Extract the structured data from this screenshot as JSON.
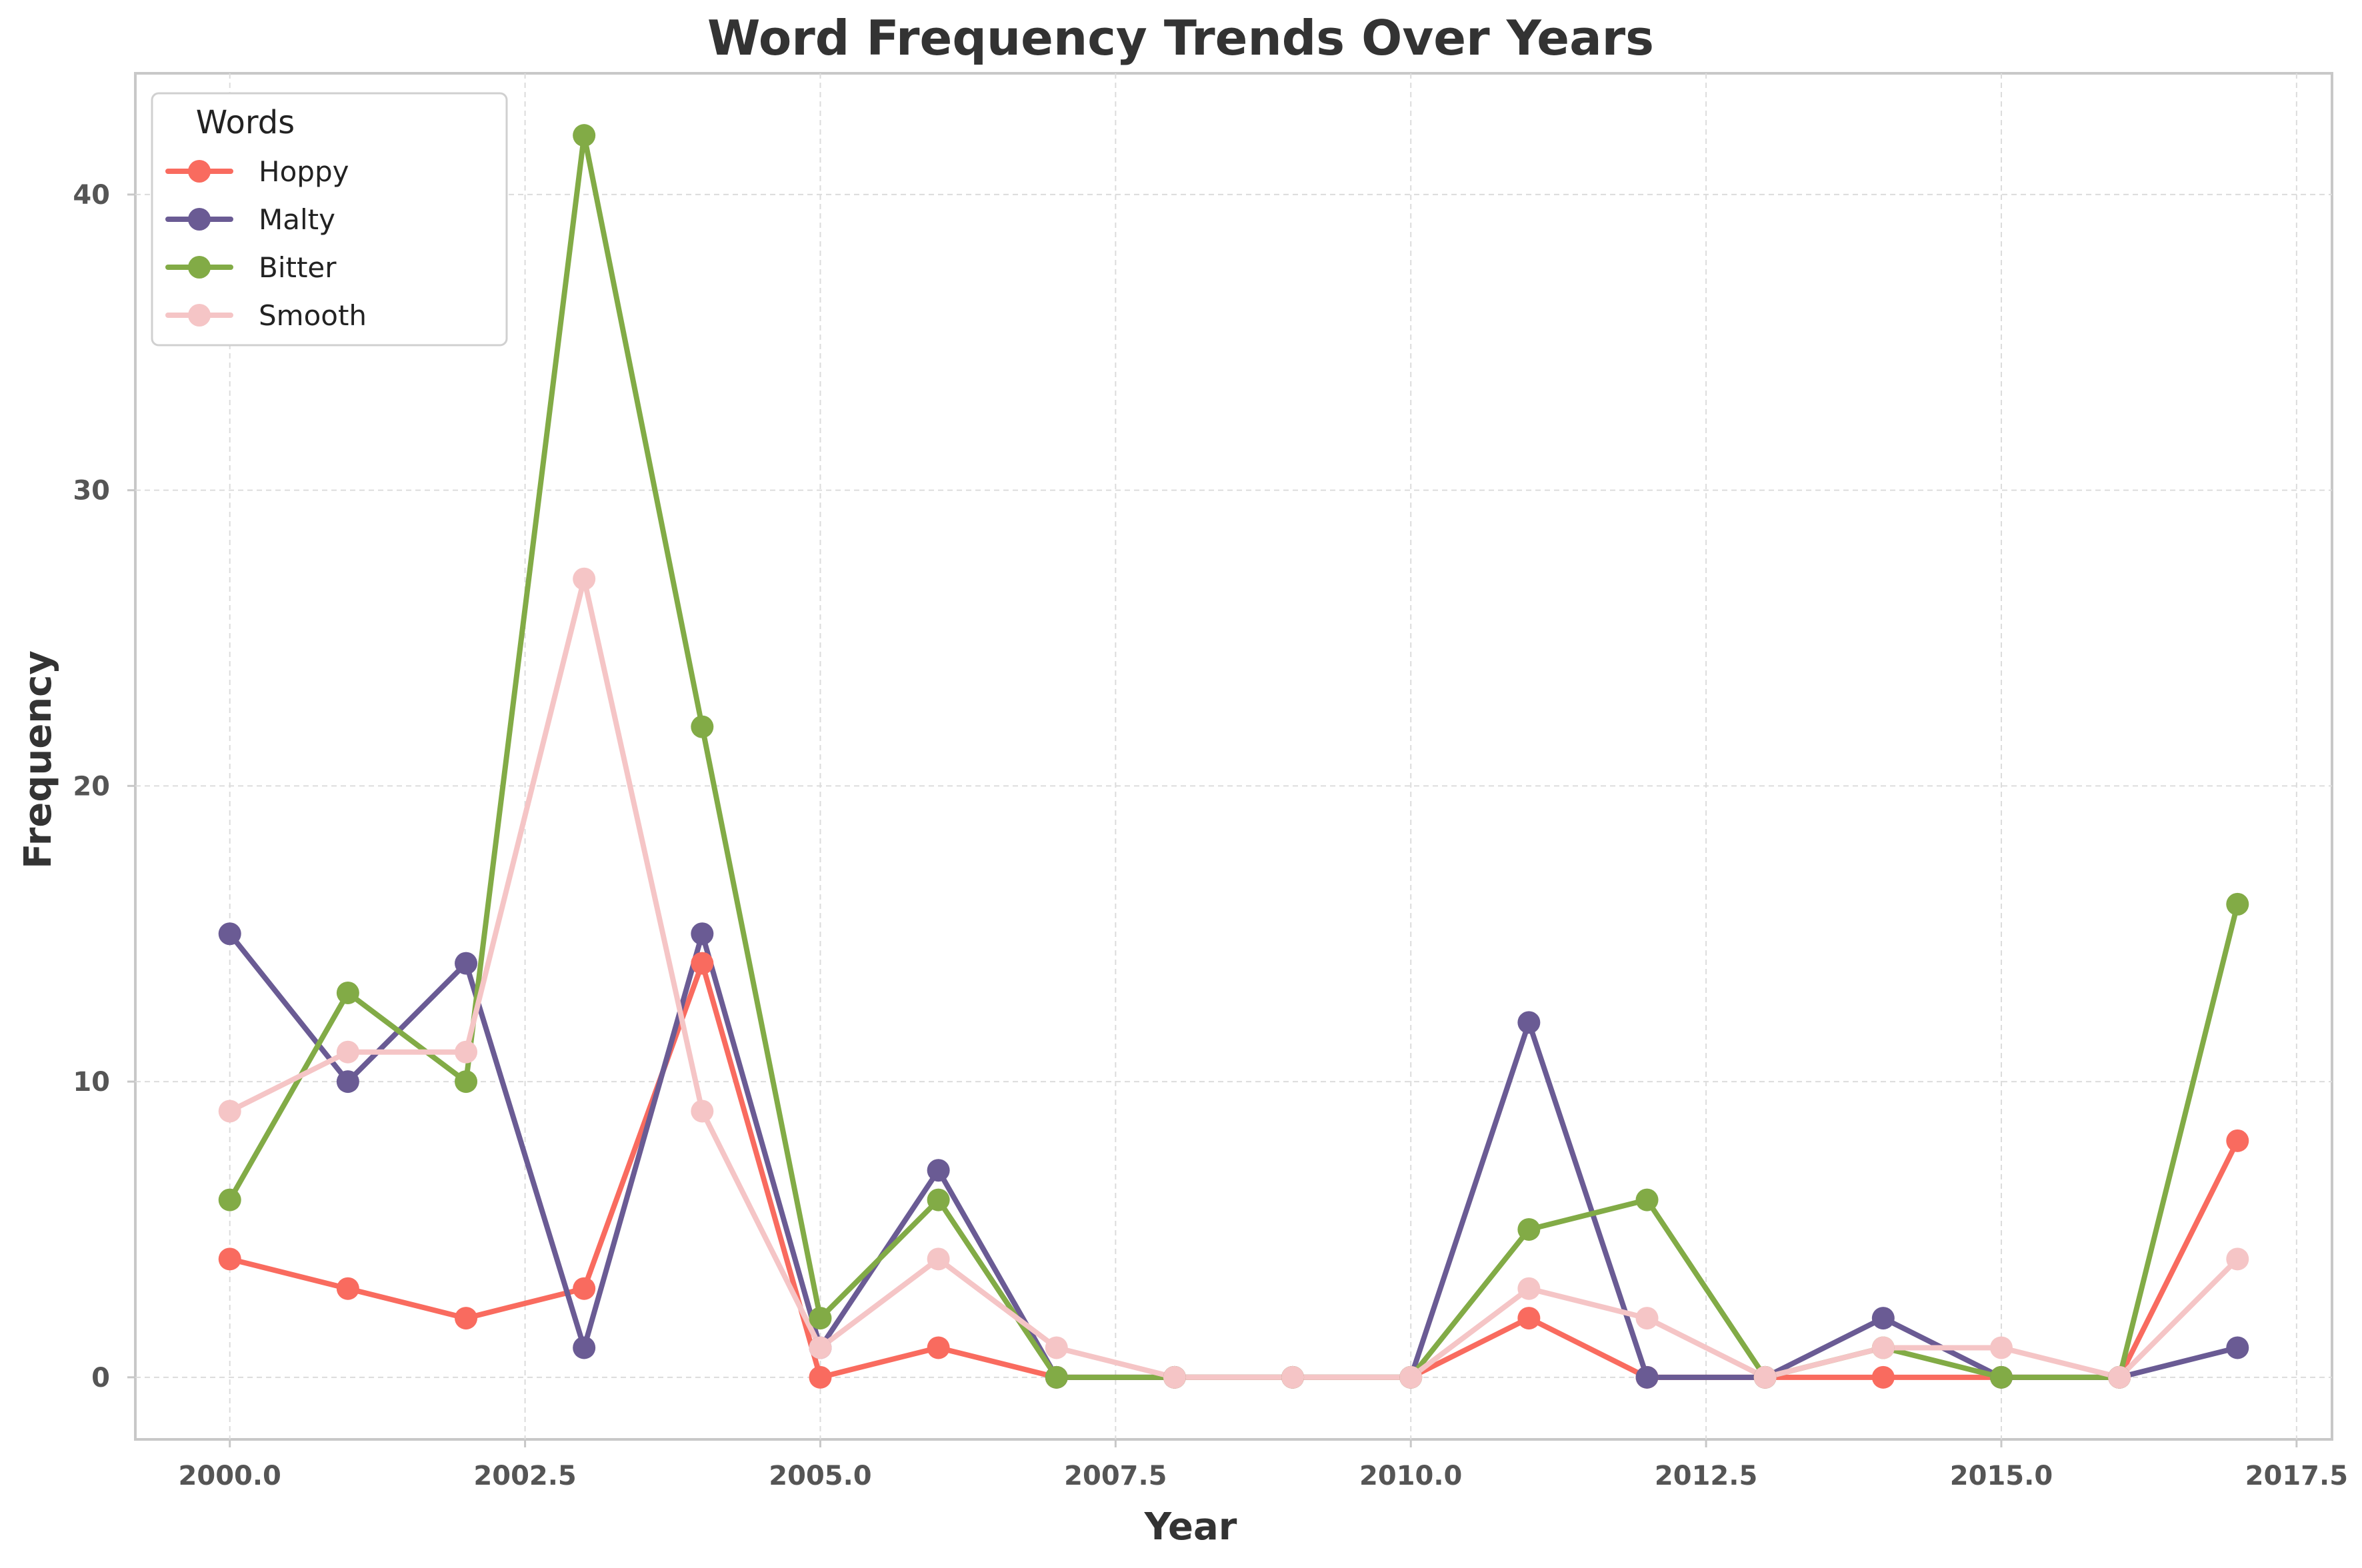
{
  "chart_data": {
    "type": "line",
    "title": "Word Frequency Trends Over Years",
    "xlabel": "Year",
    "ylabel": "Frequency",
    "xlim": [
      1999.2,
      2017.8
    ],
    "ylim": [
      -2.1,
      44.1
    ],
    "x_ticks": [
      2000.0,
      2002.5,
      2005.0,
      2007.5,
      2010.0,
      2012.5,
      2015.0,
      2017.5
    ],
    "x_tick_labels": [
      "2000.0",
      "2002.5",
      "2005.0",
      "2007.5",
      "2010.0",
      "2012.5",
      "2015.0",
      "2017.5"
    ],
    "y_ticks": [
      0,
      10,
      20,
      30,
      40
    ],
    "y_tick_labels": [
      "0",
      "10",
      "20",
      "30",
      "40"
    ],
    "grid": true,
    "legend": {
      "title": "Words",
      "placement": "top-left"
    },
    "x": [
      2000,
      2001,
      2002,
      2003,
      2004,
      2005,
      2006,
      2007,
      2008,
      2009,
      2010,
      2011,
      2012,
      2013,
      2014,
      2015,
      2016,
      2017
    ],
    "series": [
      {
        "name": "Hoppy",
        "color": "#f96b5f",
        "values": [
          4,
          3,
          2,
          3,
          14,
          0,
          1,
          0,
          0,
          0,
          0,
          2,
          0,
          0,
          0,
          0,
          0,
          8
        ]
      },
      {
        "name": "Malty",
        "color": "#6a5b94",
        "values": [
          15,
          10,
          14,
          1,
          15,
          1,
          7,
          0,
          0,
          0,
          0,
          12,
          0,
          0,
          2,
          0,
          0,
          1
        ]
      },
      {
        "name": "Bitter",
        "color": "#82ab46",
        "values": [
          6,
          13,
          10,
          42,
          22,
          2,
          6,
          0,
          0,
          0,
          0,
          5,
          6,
          0,
          1,
          0,
          0,
          16
        ]
      },
      {
        "name": "Smooth",
        "color": "#f5c5c6",
        "values": [
          9,
          11,
          11,
          27,
          9,
          1,
          4,
          1,
          0,
          0,
          0,
          3,
          2,
          0,
          1,
          1,
          0,
          4
        ]
      }
    ]
  }
}
